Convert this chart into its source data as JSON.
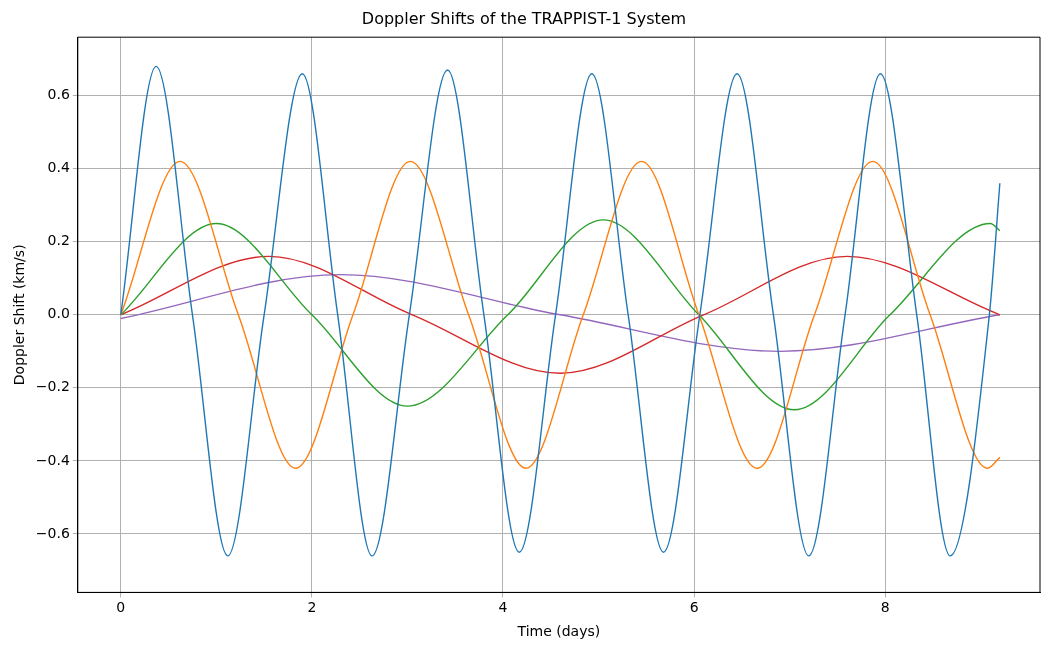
{
  "chart_data": {
    "type": "line",
    "title": "Doppler Shifts of the TRAPPIST-1 System",
    "xlabel": "Time (days)",
    "ylabel": "Doppler Shift (km/s)",
    "xlim": [
      -0.45,
      9.62
    ],
    "ylim": [
      -0.76,
      0.76
    ],
    "xticks": [
      0,
      2,
      4,
      6,
      8
    ],
    "yticks": [
      {
        "value": -0.6,
        "label": "−0.6"
      },
      {
        "value": -0.4,
        "label": "−0.4"
      },
      {
        "value": -0.2,
        "label": "−0.2"
      },
      {
        "value": 0,
        "label": "0.0"
      },
      0.2,
      0.4,
      0.6
    ],
    "grid": true,
    "legend": false,
    "marker": "none",
    "line_style": "solid",
    "series": [
      {
        "color": "#1f77b4",
        "x": [
          0,
          0.37,
          0.75,
          1.12,
          1.5,
          1.9,
          2.27,
          2.63,
          3.02,
          3.42,
          3.8,
          4.17,
          4.55,
          4.93,
          5.31,
          5.68,
          6.06,
          6.45,
          6.83,
          7.2,
          7.58,
          7.95,
          8.33,
          8.68,
          9.09,
          9.2
        ],
        "values": [
          0,
          0.68,
          0,
          -0.66,
          0,
          0.66,
          0,
          -0.66,
          0,
          0.67,
          0,
          -0.65,
          0,
          0.66,
          0,
          -0.65,
          0,
          0.66,
          0,
          -0.66,
          0,
          0.66,
          0,
          -0.66,
          0,
          0.36
        ]
      },
      {
        "color": "#ff7f0e",
        "x": [
          0,
          0.62,
          1.23,
          1.83,
          2.43,
          3.03,
          3.64,
          4.24,
          4.84,
          5.45,
          6.05,
          6.66,
          7.26,
          7.87,
          8.47,
          9.07,
          9.2
        ],
        "values": [
          0,
          0.42,
          0,
          -0.42,
          0,
          0.42,
          0,
          -0.42,
          0,
          0.42,
          0,
          -0.42,
          0,
          0.42,
          0,
          -0.42,
          -0.39
        ]
      },
      {
        "color": "#2ca02c",
        "x": [
          0,
          1.0,
          2.0,
          3.0,
          4.05,
          5.05,
          6.05,
          7.05,
          8.05,
          9.1,
          9.2
        ],
        "values": [
          0,
          0.25,
          0,
          -0.25,
          0,
          0.26,
          0,
          -0.26,
          0,
          0.25,
          0.23
        ]
      },
      {
        "color": "#d62728",
        "x": [
          0,
          1.55,
          3.05,
          4.6,
          6.1,
          7.6,
          9.2
        ],
        "values": [
          0,
          0.16,
          0,
          -0.16,
          0,
          0.16,
          0
        ]
      },
      {
        "color": "#9467bd",
        "x": [
          0,
          2.3,
          4.6,
          6.9,
          9.2
        ],
        "values": [
          -0.01,
          0.11,
          0,
          -0.1,
          0
        ]
      }
    ]
  }
}
